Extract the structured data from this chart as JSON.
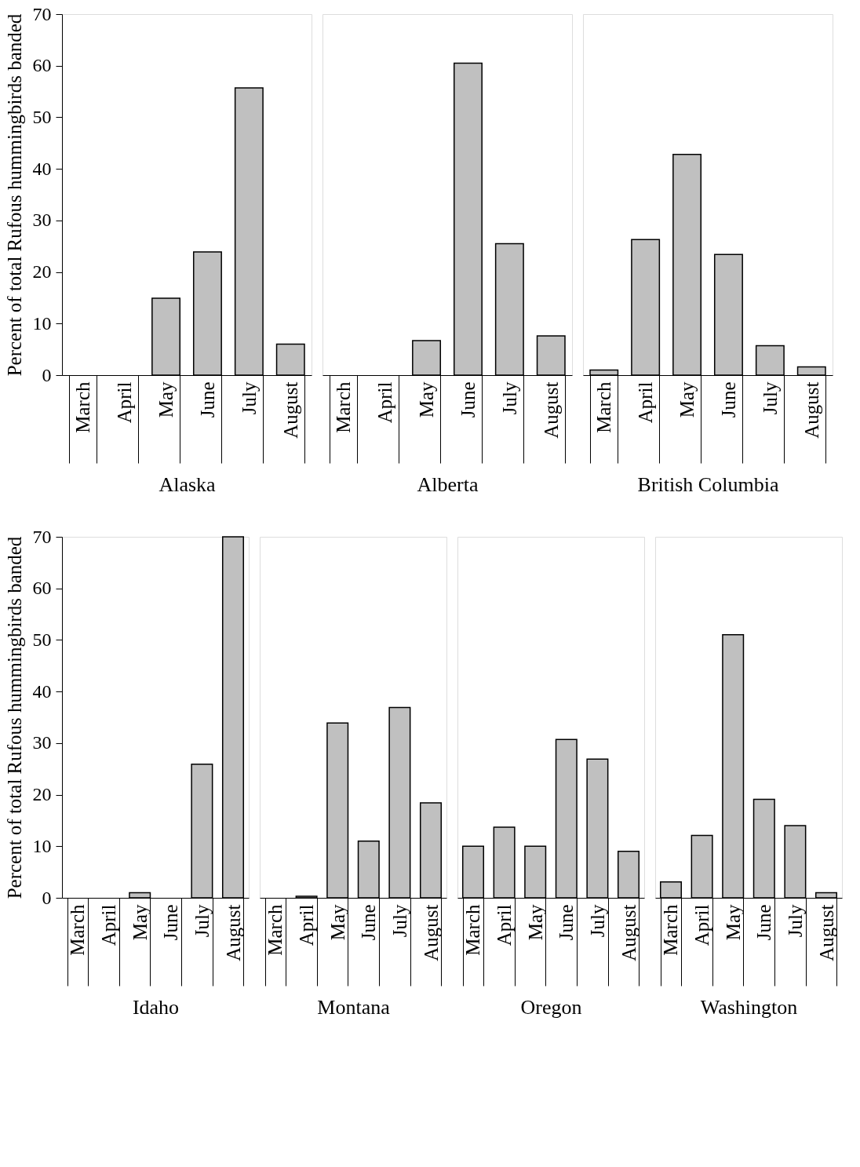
{
  "chart_data": [
    {
      "type": "bar",
      "xlabel": "Alaska",
      "ylabel": "Percent of total Rufous hummingbirds banded",
      "categories": [
        "March",
        "April",
        "May",
        "June",
        "July",
        "August"
      ],
      "values": [
        0,
        0,
        14.9,
        23.9,
        55.7,
        6.0
      ],
      "color": "#c0c0c0",
      "ylim": [
        0,
        70
      ],
      "yticks": [
        0,
        10,
        20,
        30,
        40,
        50,
        60,
        70
      ],
      "grid": false
    },
    {
      "type": "bar",
      "xlabel": "Alberta",
      "categories": [
        "March",
        "April",
        "May",
        "June",
        "July",
        "August"
      ],
      "values": [
        0,
        0,
        6.7,
        60.5,
        25.5,
        7.6
      ],
      "color": "#c0c0c0",
      "ylim": [
        0,
        70
      ],
      "tick_labels": "x",
      "grid": false
    },
    {
      "type": "bar",
      "xlabel": "British Columbia",
      "categories": [
        "March",
        "April",
        "May",
        "June",
        "July",
        "August"
      ],
      "values": [
        1.0,
        26.3,
        42.8,
        23.4,
        5.7,
        1.6
      ],
      "color": "#c0c0c0",
      "ylim": [
        0,
        70
      ],
      "tick_labels": "x",
      "grid": false
    },
    {
      "type": "bar",
      "xlabel": "Idaho",
      "ylabel": "Percent of total Rufous hummingbirds banded",
      "categories": [
        "March",
        "April",
        "May",
        "June",
        "July",
        "August"
      ],
      "values": [
        0,
        0,
        1.0,
        0,
        25.9,
        70
      ],
      "color": "#c0c0c0",
      "ylim": [
        0,
        70
      ],
      "yticks": [
        0,
        10,
        20,
        30,
        40,
        50,
        60,
        70
      ],
      "grid": false
    },
    {
      "type": "bar",
      "xlabel": "Montana",
      "categories": [
        "March",
        "April",
        "May",
        "June",
        "July",
        "August"
      ],
      "values": [
        0,
        0.3,
        33.9,
        11.0,
        36.9,
        18.4
      ],
      "color": "#c0c0c0",
      "ylim": [
        0,
        70
      ],
      "tick_labels": "x",
      "grid": false
    },
    {
      "type": "bar",
      "xlabel": "Oregon",
      "categories": [
        "March",
        "April",
        "May",
        "June",
        "July",
        "August"
      ],
      "values": [
        10.0,
        13.7,
        10.0,
        30.7,
        26.9,
        9.0
      ],
      "color": "#c0c0c0",
      "ylim": [
        0,
        70
      ],
      "tick_labels": "x",
      "grid": false
    },
    {
      "type": "bar",
      "xlabel": "Washington",
      "categories": [
        "March",
        "April",
        "May",
        "June",
        "July",
        "August"
      ],
      "values": [
        3.1,
        12.1,
        51.0,
        19.1,
        14.0,
        1.0
      ],
      "color": "#c0c0c0",
      "ylim": [
        0,
        70
      ],
      "tick_labels": "x",
      "grid": false
    }
  ]
}
